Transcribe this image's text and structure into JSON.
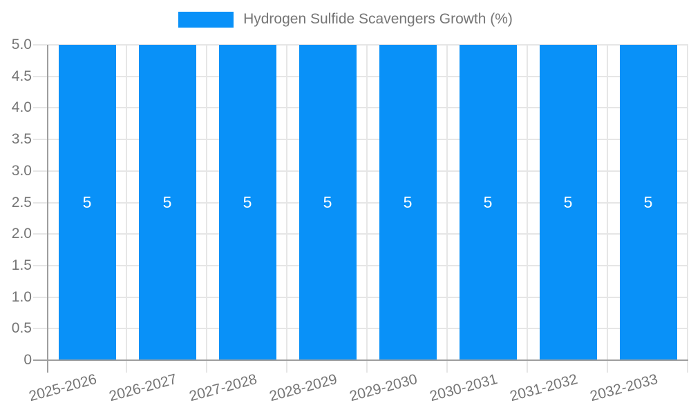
{
  "chart_data": {
    "type": "bar",
    "title": "Hydrogen Sulfide Scavengers Growth (%)",
    "categories": [
      "2025-2026",
      "2026-2027",
      "2027-2028",
      "2028-2029",
      "2029-2030",
      "2030-2031",
      "2031-2032",
      "2032-2033"
    ],
    "values": [
      5,
      5,
      5,
      5,
      5,
      5,
      5,
      5
    ],
    "bar_labels": [
      "5",
      "5",
      "5",
      "5",
      "5",
      "5",
      "5",
      "5"
    ],
    "series_name": "Hydrogen Sulfide Scavengers Growth (%)",
    "xlabel": "",
    "ylabel": "",
    "ylim": [
      0,
      5
    ],
    "y_ticks": [
      "5.0",
      "4.5",
      "4.0",
      "3.5",
      "3.0",
      "2.5",
      "2.0",
      "1.5",
      "1.0",
      "0.5",
      "0"
    ],
    "grid": true,
    "legend_position": "top-center",
    "colors": {
      "bar": "#0991F8",
      "grid_line": "#E6E6E6",
      "axis_line": "#9E9E9E",
      "tick_label": "#757575",
      "bar_value_label": "#FFFFFF",
      "background": "#FFFFFF"
    }
  }
}
